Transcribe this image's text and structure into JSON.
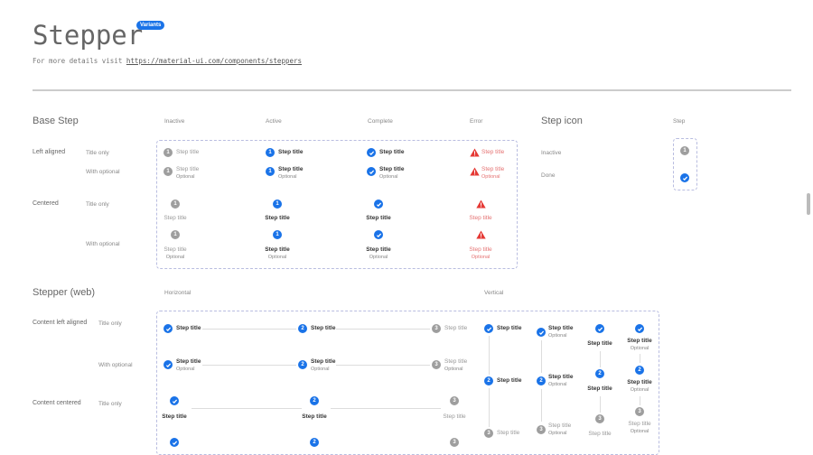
{
  "header": {
    "title": "Stepper",
    "badge": "Variants",
    "subtitle_prefix": "For more details visit ",
    "link": "https://material-ui.com/components/steppers"
  },
  "base_step": {
    "heading": "Base Step",
    "columns": [
      "Inactive",
      "Active",
      "Complete",
      "Error"
    ],
    "groups": [
      {
        "label": "Left aligned",
        "rows": [
          "Title only",
          "With optional"
        ]
      },
      {
        "label": "Centered",
        "rows": [
          "Title only",
          "With optional"
        ]
      }
    ],
    "states": [
      "inactive",
      "active",
      "complete",
      "error"
    ],
    "step_number": "1",
    "step_title": "Step title",
    "optional": "Optional"
  },
  "step_icon": {
    "heading": "Step icon",
    "column": "Step",
    "rows": [
      "Inactive",
      "Done"
    ],
    "number": "1"
  },
  "stepper_web": {
    "heading": "Stepper (web)",
    "columns": [
      "Horizontal",
      "Vertical"
    ],
    "groups": [
      {
        "label": "Content left aligned",
        "rows": [
          "Title only",
          "With optional"
        ]
      },
      {
        "label": "Content centered",
        "rows": [
          "Title only"
        ]
      }
    ],
    "steps": [
      {
        "state": "complete",
        "number": "1"
      },
      {
        "state": "active",
        "number": "2"
      },
      {
        "state": "inactive",
        "number": "3"
      }
    ],
    "step_title": "Step title",
    "optional": "Optional"
  },
  "colors": {
    "accent": "#1a73e8",
    "inactive": "#9e9e9e",
    "error": "#e53935"
  },
  "icons": {
    "complete": "check-circle-icon",
    "error": "warning-triangle-icon",
    "active": "numbered-circle-icon",
    "inactive": "numbered-circle-icon"
  }
}
